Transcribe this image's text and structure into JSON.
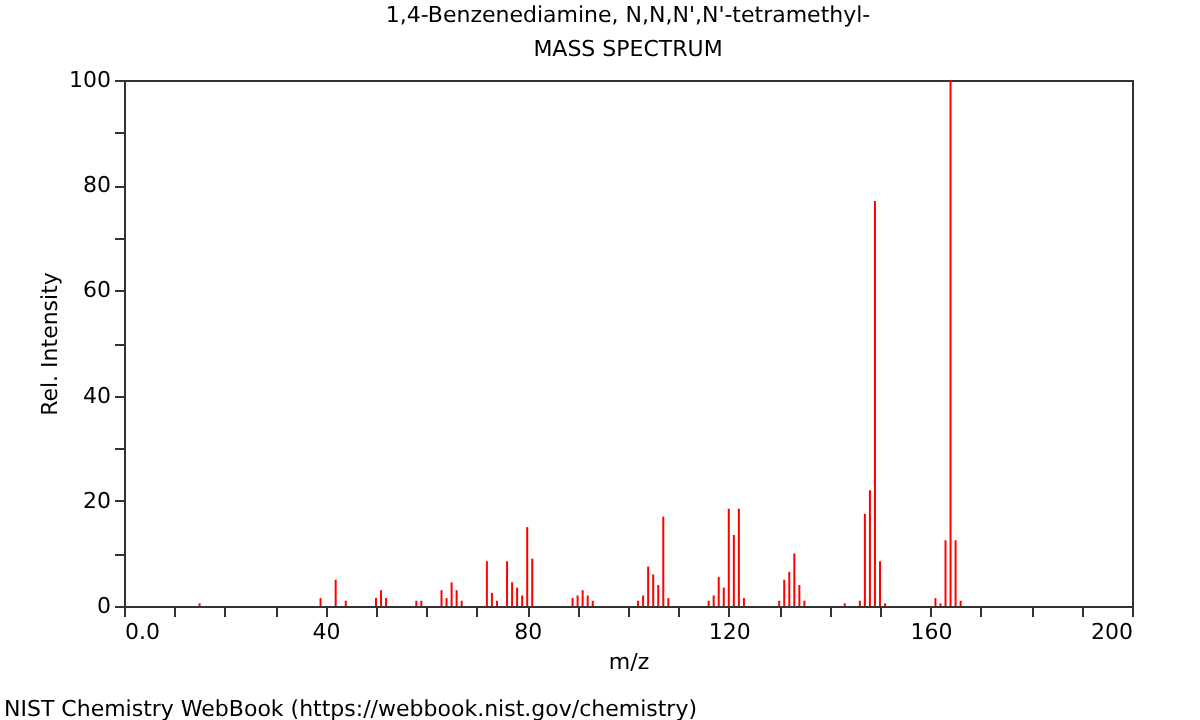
{
  "chart_data": {
    "type": "bar",
    "title": "1,4-Benzenediamine, N,N,N',N'-tetramethyl-",
    "subtitle": "MASS SPECTRUM",
    "xlabel": "m/z",
    "ylabel": "Rel. Intensity",
    "x": [
      15,
      39,
      42,
      44,
      50,
      51,
      52,
      58,
      59,
      63,
      64,
      65,
      66,
      67,
      72,
      73,
      74,
      76,
      77,
      78,
      79,
      80,
      81,
      89,
      90,
      91,
      92,
      93,
      102,
      103,
      104,
      105,
      106,
      107,
      108,
      116,
      117,
      118,
      119,
      120,
      121,
      122,
      123,
      130,
      131,
      132,
      133,
      134,
      135,
      143,
      146,
      147,
      148,
      149,
      150,
      151,
      161,
      162,
      163,
      164,
      165,
      166
    ],
    "values": [
      0.5,
      1.5,
      5,
      1,
      1.5,
      3,
      1.5,
      1,
      1,
      3,
      1.5,
      4.5,
      3,
      1,
      8.5,
      2.5,
      1,
      8.5,
      4.5,
      3.5,
      2,
      15,
      9,
      1.5,
      2,
      3,
      2,
      1,
      1,
      2,
      7.5,
      6,
      4,
      17,
      1.5,
      1,
      2,
      5.5,
      3.5,
      18.5,
      13.5,
      18.5,
      1.5,
      1,
      5,
      6.5,
      10,
      4,
      1,
      0.5,
      1,
      17.5,
      22,
      77,
      8.5,
      0.5,
      1.5,
      0.5,
      12.5,
      100,
      12.5,
      1
    ],
    "color": "#ff0000",
    "xlim": [
      0,
      200
    ],
    "xticks": [
      {
        "value": 0,
        "label": "0.0"
      },
      {
        "value": 10,
        "label": null
      },
      {
        "value": 20,
        "label": null
      },
      {
        "value": 30,
        "label": null
      },
      40,
      {
        "value": 50,
        "label": null
      },
      {
        "value": 60,
        "label": null
      },
      {
        "value": 70,
        "label": null
      },
      80,
      {
        "value": 90,
        "label": null
      },
      {
        "value": 100,
        "label": null
      },
      {
        "value": 110,
        "label": null
      },
      120,
      {
        "value": 130,
        "label": null
      },
      {
        "value": 140,
        "label": null
      },
      {
        "value": 150,
        "label": null
      },
      160,
      {
        "value": 170,
        "label": null
      },
      {
        "value": 180,
        "label": null
      },
      {
        "value": 190,
        "label": null
      },
      200
    ],
    "ylim": [
      0,
      100
    ],
    "yticks": [
      0,
      {
        "value": 10,
        "label": null
      },
      20,
      {
        "value": 30,
        "label": null
      },
      40,
      {
        "value": 50,
        "label": null
      },
      60,
      {
        "value": 70,
        "label": null
      },
      80,
      {
        "value": 90,
        "label": null
      },
      100
    ],
    "annotations": [
      "NIST Chemistry WebBook (https://webbook.nist.gov/chemistry)"
    ]
  }
}
